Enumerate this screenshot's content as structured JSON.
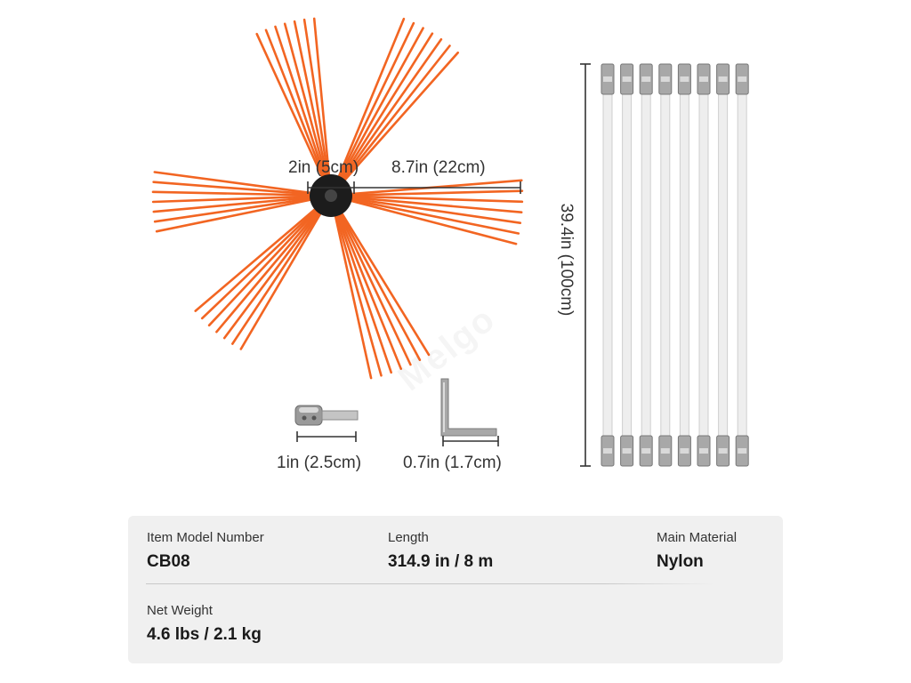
{
  "dimensions": {
    "hub_width": "2in (5cm)",
    "bristle_length": "8.7in (22cm)",
    "rod_length": "39.4in (100cm)",
    "adapter_length": "1in (2.5cm)",
    "wrench_length": "0.7in (1.7cm)"
  },
  "specs": {
    "model_label": "Item Model Number",
    "model_value": "CB08",
    "length_label": "Length",
    "length_value": "314.9 in / 8 m",
    "material_label": "Main Material",
    "material_value": "Nylon",
    "weight_label": "Net Weight",
    "weight_value": "4.6 lbs / 2.1 kg"
  },
  "rods": {
    "count": 8
  },
  "colors": {
    "bristle": "#f26522",
    "hub": "#1c1c1c",
    "rod": "#eeeeee",
    "metal": "#a8a8a8",
    "panel": "#f0f0f0"
  }
}
